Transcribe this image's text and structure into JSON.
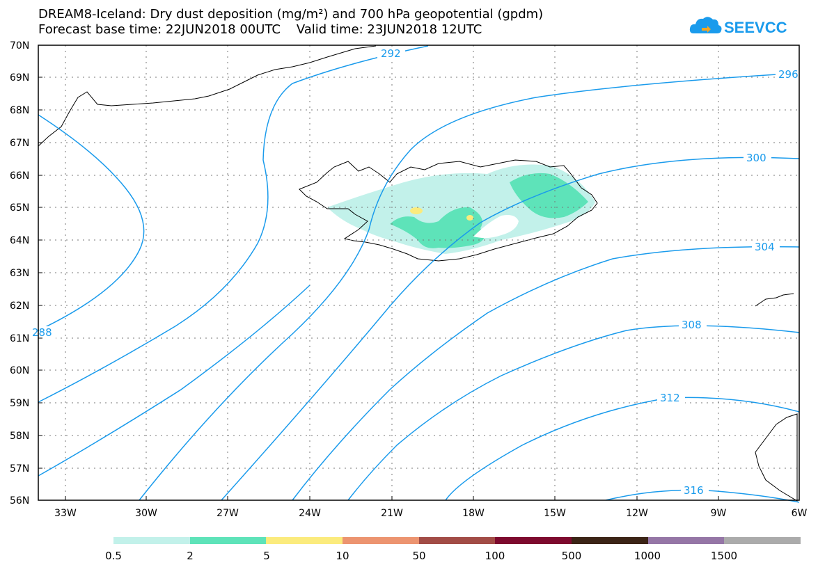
{
  "header": {
    "title_line1": "DREAM8-Iceland: Dry dust deposition (mg/m²) and 700 hPa geopotential (gpdm)",
    "title_line2": "Forecast base time: 22JUN2018 00UTC    Valid time: 23JUN2018 12UTC",
    "logo_text": "SEEVCCC"
  },
  "map": {
    "region": "Iceland",
    "lat_labels": [
      "70N",
      "69N",
      "68N",
      "67N",
      "66N",
      "65N",
      "64N",
      "63N",
      "62N",
      "61N",
      "60N",
      "59N",
      "58N",
      "57N",
      "56N"
    ],
    "lon_labels": [
      "33W",
      "30W",
      "27W",
      "24W",
      "21W",
      "18W",
      "15W",
      "12W",
      "9W",
      "6W"
    ],
    "contour_labels": [
      "292",
      "296",
      "300",
      "304",
      "308",
      "312",
      "316",
      "288"
    ],
    "colors": {
      "contour": "#1a9bec",
      "coast": "#000000",
      "grid": "#777777"
    }
  },
  "legend": {
    "labels": [
      "0.5",
      "2",
      "5",
      "10",
      "50",
      "100",
      "500",
      "1000",
      "1500"
    ],
    "colors": [
      "#c2f1ea",
      "#5ee3b9",
      "#fbeb7d",
      "#ec9470",
      "#a24c46",
      "#7d0a2e",
      "#3b2416",
      "#9576a6",
      "#ababab"
    ]
  }
}
